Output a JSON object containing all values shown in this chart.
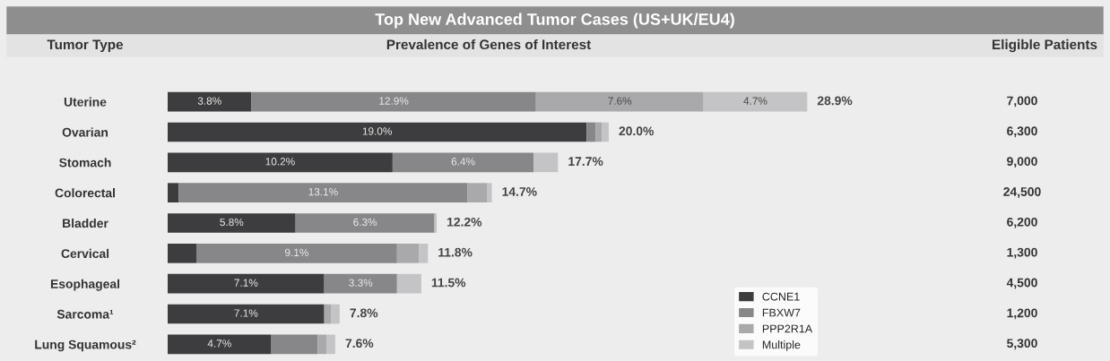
{
  "chart_data": {
    "type": "bar",
    "orientation": "horizontal",
    "stacked": true,
    "title": "Top New Advanced Tumor Cases (US+UK/EU4)",
    "ylabel": "Tumor Type",
    "xlabel": "Prevalence of Genes of Interest",
    "categories": [
      "Uterine",
      "Ovarian",
      "Stomach",
      "Colorectal",
      "Bladder",
      "Cervical",
      "Esophageal",
      "Sarcoma¹",
      "Lung Squamous²"
    ],
    "series": [
      {
        "name": "CCNE1",
        "color": "#3d3d3f",
        "values": [
          3.8,
          19.0,
          10.2,
          0.5,
          5.8,
          1.3,
          7.1,
          7.1,
          4.7
        ],
        "value_labels": [
          "3.8%",
          "19.0%",
          "10.2%",
          null,
          "5.8%",
          null,
          "7.1%",
          "7.1%",
          "4.7%"
        ]
      },
      {
        "name": "FBXW7",
        "color": "#87878a",
        "values": [
          12.9,
          0.4,
          6.4,
          13.1,
          6.3,
          9.1,
          3.3,
          0,
          2.1
        ],
        "value_labels": [
          "12.9%",
          null,
          "6.4%",
          "13.1%",
          "6.3%",
          "9.1%",
          "3.3%",
          null,
          null
        ]
      },
      {
        "name": "PPP2R1A",
        "color": "#a9a9ac",
        "values": [
          7.6,
          0.3,
          0,
          0.9,
          0,
          1.0,
          0,
          0.3,
          0.4
        ],
        "value_labels": [
          "7.6%",
          null,
          null,
          null,
          null,
          null,
          null,
          null,
          null
        ]
      },
      {
        "name": "Multiple",
        "color": "#c4c4c6",
        "values": [
          4.7,
          0.3,
          1.1,
          0.2,
          0.1,
          0.4,
          1.1,
          0.4,
          0.4
        ],
        "value_labels": [
          "4.7%",
          null,
          null,
          null,
          null,
          null,
          null,
          null,
          null
        ]
      }
    ],
    "totals": [
      "28.9%",
      "20.0%",
      "17.7%",
      "14.7%",
      "12.2%",
      "11.8%",
      "11.5%",
      "7.8%",
      "7.6%"
    ],
    "annotations": [
      "Eligible Patients",
      "7,000",
      "6,300",
      "9,000",
      "24,500",
      "6,200",
      "1,300",
      "4,500",
      "1,200",
      "5,300"
    ],
    "legend": "bottom right",
    "grid": false
  }
}
